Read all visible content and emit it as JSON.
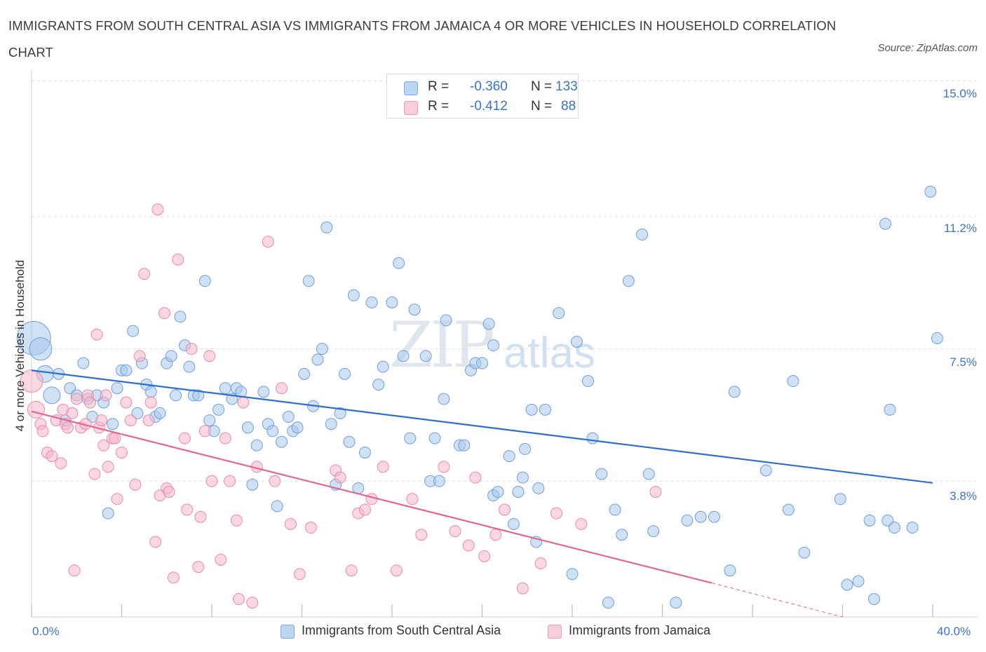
{
  "title": "IMMIGRANTS FROM SOUTH CENTRAL ASIA VS IMMIGRANTS FROM JAMAICA 4 OR MORE VEHICLES IN HOUSEHOLD CORRELATION CHART",
  "source": "Source: ZipAtlas.com",
  "watermark": {
    "zip": "ZIP",
    "atlas": "atlas"
  },
  "legend": {
    "rows": [
      {
        "r_label": "R =",
        "r_value": "-0.360",
        "n_label": "N =",
        "n_value": "133",
        "color": "#a9c8ef"
      },
      {
        "r_label": "R =",
        "r_value": "-0.412",
        "n_label": "N =",
        "n_value": "88",
        "color": "#f5b6c9"
      }
    ]
  },
  "bottom_legend": [
    {
      "label": "Immigrants from South Central Asia",
      "color": "#a9c8ef"
    },
    {
      "label": "Immigrants from Jamaica",
      "color": "#f5b6c9"
    }
  ],
  "colors": {
    "blue_fill": "#a9c8ef",
    "blue_stroke": "#6d9fdc",
    "blue_line": "#2f6fcc",
    "pink_fill": "#f5b6c9",
    "pink_stroke": "#e98aa8",
    "pink_line": "#e0688f",
    "tick_text": "#3b73c8",
    "grid": "#dddddd"
  },
  "chart_data": {
    "type": "scatter",
    "title": "IMMIGRANTS FROM SOUTH CENTRAL ASIA VS IMMIGRANTS FROM JAMAICA 4 OR MORE VEHICLES IN HOUSEHOLD CORRELATION CHART",
    "xlabel": "",
    "ylabel": "4 or more Vehicles in Household",
    "xlim": [
      0,
      40
    ],
    "ylim": [
      0,
      15.3
    ],
    "x_ticks": [
      "0.0%",
      "40.0%"
    ],
    "y_ticks": [
      {
        "value": 15.0,
        "label": "15.0%"
      },
      {
        "value": 11.2,
        "label": "11.2%"
      },
      {
        "value": 7.5,
        "label": "7.5%"
      },
      {
        "value": 3.8,
        "label": "3.8%"
      }
    ],
    "grid": true,
    "legend_position": "top-center",
    "series": [
      {
        "name": "Immigrants from South Central Asia",
        "color": "#a9c8ef",
        "trend": {
          "x": [
            0,
            40
          ],
          "y": [
            6.9,
            3.75
          ]
        },
        "points": [
          [
            0.1,
            7.8,
            3
          ],
          [
            0.4,
            7.5,
            2
          ],
          [
            0.6,
            6.8,
            1.5
          ],
          [
            0.9,
            6.2,
            1.5
          ],
          [
            1.2,
            6.8,
            1
          ],
          [
            1.5,
            5.5,
            1
          ],
          [
            1.7,
            6.4,
            1
          ],
          [
            2.0,
            6.2,
            1
          ],
          [
            2.3,
            7.1,
            1
          ],
          [
            2.5,
            6.1,
            1
          ],
          [
            2.7,
            5.6,
            1
          ],
          [
            2.9,
            6.2,
            1
          ],
          [
            3.2,
            6.0,
            1
          ],
          [
            3.4,
            2.9,
            1
          ],
          [
            3.6,
            5.4,
            1
          ],
          [
            3.8,
            6.4,
            1
          ],
          [
            4.0,
            6.9,
            1
          ],
          [
            4.2,
            6.9,
            1
          ],
          [
            4.5,
            8.0,
            1
          ],
          [
            4.7,
            5.7,
            1
          ],
          [
            4.9,
            7.1,
            1
          ],
          [
            5.1,
            6.5,
            1
          ],
          [
            5.3,
            6.3,
            1
          ],
          [
            5.5,
            5.6,
            1
          ],
          [
            5.7,
            5.7,
            1
          ],
          [
            6.0,
            7.1,
            1
          ],
          [
            6.2,
            7.3,
            1
          ],
          [
            6.4,
            6.2,
            1
          ],
          [
            6.6,
            8.4,
            1
          ],
          [
            6.8,
            7.6,
            1
          ],
          [
            7.0,
            7.0,
            1
          ],
          [
            7.2,
            6.2,
            1
          ],
          [
            7.4,
            6.2,
            1
          ],
          [
            7.7,
            9.4,
            1
          ],
          [
            7.9,
            5.5,
            1
          ],
          [
            8.1,
            5.2,
            1
          ],
          [
            8.3,
            5.8,
            1
          ],
          [
            8.6,
            6.4,
            1
          ],
          [
            8.9,
            6.1,
            1
          ],
          [
            9.1,
            6.4,
            1
          ],
          [
            9.3,
            6.3,
            1
          ],
          [
            9.6,
            5.3,
            1
          ],
          [
            9.8,
            3.7,
            1
          ],
          [
            10.0,
            4.8,
            1
          ],
          [
            10.3,
            6.3,
            1
          ],
          [
            10.5,
            5.4,
            1
          ],
          [
            10.7,
            5.2,
            1
          ],
          [
            10.9,
            3.1,
            1
          ],
          [
            11.1,
            4.9,
            1
          ],
          [
            11.4,
            5.6,
            1
          ],
          [
            11.6,
            5.2,
            1
          ],
          [
            11.8,
            5.3,
            1
          ],
          [
            12.1,
            6.8,
            1
          ],
          [
            12.3,
            9.4,
            1
          ],
          [
            12.5,
            5.9,
            1
          ],
          [
            12.7,
            7.2,
            1
          ],
          [
            12.9,
            7.5,
            1
          ],
          [
            13.1,
            10.9,
            1
          ],
          [
            13.3,
            5.4,
            1
          ],
          [
            13.5,
            3.7,
            1
          ],
          [
            13.7,
            5.7,
            1
          ],
          [
            13.9,
            6.8,
            1
          ],
          [
            14.1,
            4.9,
            1
          ],
          [
            14.3,
            9.0,
            1
          ],
          [
            14.5,
            3.6,
            1
          ],
          [
            14.8,
            4.6,
            1
          ],
          [
            15.1,
            8.8,
            1
          ],
          [
            15.4,
            6.5,
            1
          ],
          [
            15.6,
            7.0,
            1
          ],
          [
            16.0,
            8.8,
            1
          ],
          [
            16.3,
            9.9,
            1
          ],
          [
            16.5,
            7.3,
            1
          ],
          [
            16.8,
            5.0,
            1
          ],
          [
            17.0,
            8.6,
            1
          ],
          [
            17.5,
            7.3,
            1
          ],
          [
            17.7,
            3.8,
            1
          ],
          [
            17.9,
            5.0,
            1
          ],
          [
            18.1,
            3.8,
            1
          ],
          [
            18.3,
            6.1,
            1
          ],
          [
            18.4,
            8.3,
            1
          ],
          [
            19.0,
            4.8,
            1
          ],
          [
            19.2,
            4.8,
            1
          ],
          [
            19.5,
            6.9,
            1
          ],
          [
            19.7,
            7.1,
            1
          ],
          [
            20.0,
            7.1,
            1
          ],
          [
            20.3,
            8.2,
            1
          ],
          [
            20.5,
            7.6,
            1
          ],
          [
            20.5,
            3.4,
            1
          ],
          [
            20.7,
            3.5,
            1
          ],
          [
            21.2,
            4.5,
            1
          ],
          [
            21.4,
            2.6,
            1
          ],
          [
            21.6,
            3.5,
            1
          ],
          [
            21.8,
            3.9,
            1
          ],
          [
            21.9,
            4.7,
            1
          ],
          [
            22.2,
            5.8,
            1
          ],
          [
            22.4,
            2.1,
            1
          ],
          [
            22.5,
            3.6,
            1
          ],
          [
            22.8,
            5.8,
            1
          ],
          [
            23.4,
            8.5,
            1
          ],
          [
            24.0,
            1.2,
            1
          ],
          [
            24.2,
            7.7,
            1
          ],
          [
            24.7,
            6.6,
            1
          ],
          [
            24.9,
            5.0,
            1
          ],
          [
            25.3,
            4.0,
            1
          ],
          [
            25.6,
            0.4,
            1
          ],
          [
            25.9,
            3.0,
            1
          ],
          [
            26.2,
            2.3,
            1
          ],
          [
            26.5,
            9.4,
            1
          ],
          [
            27.1,
            10.7,
            1
          ],
          [
            27.4,
            4.0,
            1
          ],
          [
            27.6,
            2.4,
            1
          ],
          [
            28.6,
            0.4,
            1
          ],
          [
            29.1,
            2.7,
            1
          ],
          [
            29.7,
            2.8,
            1
          ],
          [
            30.3,
            2.8,
            1
          ],
          [
            31.0,
            1.3,
            1
          ],
          [
            31.2,
            6.3,
            1
          ],
          [
            32.6,
            4.1,
            1
          ],
          [
            33.6,
            3.0,
            1
          ],
          [
            33.8,
            6.6,
            1
          ],
          [
            34.3,
            1.8,
            1
          ],
          [
            35.9,
            3.3,
            1
          ],
          [
            36.2,
            0.9,
            1
          ],
          [
            36.7,
            1.0,
            1
          ],
          [
            37.2,
            2.7,
            1
          ],
          [
            37.4,
            0.5,
            1
          ],
          [
            37.9,
            11.0,
            1
          ],
          [
            38.0,
            2.7,
            1
          ],
          [
            38.1,
            5.8,
            1
          ],
          [
            38.3,
            2.5,
            1
          ],
          [
            39.1,
            2.5,
            1
          ],
          [
            39.9,
            11.9,
            1
          ],
          [
            40.2,
            7.8,
            1
          ]
        ]
      },
      {
        "name": "Immigrants from Jamaica",
        "color": "#f5b6c9",
        "trend": {
          "x": [
            0,
            30.2
          ],
          "y": [
            5.75,
            0.95
          ]
        },
        "trend_extension": {
          "x": [
            30.2,
            36.0
          ],
          "y": [
            0.95,
            0.0
          ]
        },
        "points": [
          [
            0.0,
            6.6,
            2
          ],
          [
            0.2,
            5.8,
            1.5
          ],
          [
            0.4,
            5.4,
            1
          ],
          [
            0.5,
            5.2,
            1
          ],
          [
            0.7,
            4.6,
            1
          ],
          [
            0.9,
            4.5,
            1
          ],
          [
            1.1,
            5.5,
            1
          ],
          [
            1.3,
            4.3,
            1
          ],
          [
            1.4,
            5.8,
            1
          ],
          [
            1.5,
            5.4,
            1
          ],
          [
            1.6,
            5.3,
            1
          ],
          [
            1.8,
            5.7,
            1
          ],
          [
            1.9,
            1.3,
            1
          ],
          [
            2.0,
            6.1,
            1
          ],
          [
            2.2,
            5.3,
            1
          ],
          [
            2.4,
            5.4,
            1
          ],
          [
            2.5,
            6.2,
            1
          ],
          [
            2.6,
            6.0,
            1
          ],
          [
            2.8,
            4.0,
            1
          ],
          [
            2.9,
            7.9,
            1
          ],
          [
            3.0,
            5.3,
            1
          ],
          [
            3.1,
            5.5,
            1
          ],
          [
            3.2,
            4.8,
            1
          ],
          [
            3.3,
            6.2,
            1
          ],
          [
            3.4,
            4.2,
            1
          ],
          [
            3.6,
            5.0,
            1
          ],
          [
            3.7,
            5.0,
            1
          ],
          [
            3.8,
            3.3,
            1
          ],
          [
            4.0,
            4.6,
            1
          ],
          [
            4.2,
            6.0,
            1
          ],
          [
            4.4,
            5.5,
            1
          ],
          [
            4.6,
            3.7,
            1
          ],
          [
            4.8,
            7.3,
            1
          ],
          [
            5.0,
            9.6,
            1
          ],
          [
            5.2,
            5.5,
            1
          ],
          [
            5.3,
            6.0,
            1
          ],
          [
            5.5,
            2.1,
            1
          ],
          [
            5.6,
            11.4,
            1
          ],
          [
            5.7,
            3.4,
            1
          ],
          [
            5.9,
            8.5,
            1
          ],
          [
            6.0,
            3.6,
            1
          ],
          [
            6.1,
            3.5,
            1
          ],
          [
            6.3,
            1.1,
            1
          ],
          [
            6.5,
            10.0,
            1
          ],
          [
            6.8,
            5.0,
            1
          ],
          [
            6.9,
            3.0,
            1
          ],
          [
            7.1,
            7.5,
            1
          ],
          [
            7.4,
            1.4,
            1
          ],
          [
            7.5,
            2.8,
            1
          ],
          [
            7.7,
            5.2,
            1
          ],
          [
            7.9,
            7.3,
            1
          ],
          [
            8.0,
            3.8,
            1
          ],
          [
            8.4,
            1.6,
            1
          ],
          [
            8.6,
            5.0,
            1
          ],
          [
            8.8,
            3.8,
            1
          ],
          [
            9.1,
            2.7,
            1
          ],
          [
            9.2,
            0.5,
            1
          ],
          [
            9.4,
            6.0,
            1
          ],
          [
            9.8,
            0.4,
            1
          ],
          [
            10.0,
            4.2,
            1
          ],
          [
            10.5,
            10.5,
            1
          ],
          [
            10.8,
            3.8,
            1
          ],
          [
            11.1,
            6.4,
            1
          ],
          [
            11.5,
            2.6,
            1
          ],
          [
            11.9,
            1.2,
            1
          ],
          [
            12.4,
            2.5,
            1
          ],
          [
            13.5,
            4.1,
            1
          ],
          [
            13.7,
            3.9,
            1
          ],
          [
            14.2,
            1.3,
            1
          ],
          [
            14.5,
            2.9,
            1
          ],
          [
            14.8,
            3.0,
            1
          ],
          [
            15.1,
            3.3,
            1
          ],
          [
            15.6,
            4.2,
            1
          ],
          [
            16.2,
            1.3,
            1
          ],
          [
            16.9,
            3.3,
            1
          ],
          [
            17.3,
            2.3,
            1
          ],
          [
            18.3,
            4.2,
            1
          ],
          [
            18.8,
            2.4,
            1
          ],
          [
            19.4,
            2.0,
            1
          ],
          [
            19.7,
            3.9,
            1
          ],
          [
            20.1,
            1.7,
            1
          ],
          [
            20.6,
            2.3,
            1
          ],
          [
            21.0,
            3.0,
            1
          ],
          [
            21.8,
            0.8,
            1
          ],
          [
            22.6,
            1.5,
            1
          ],
          [
            23.3,
            2.9,
            1
          ],
          [
            24.4,
            2.6,
            1
          ],
          [
            27.7,
            3.5,
            1
          ]
        ]
      }
    ]
  }
}
